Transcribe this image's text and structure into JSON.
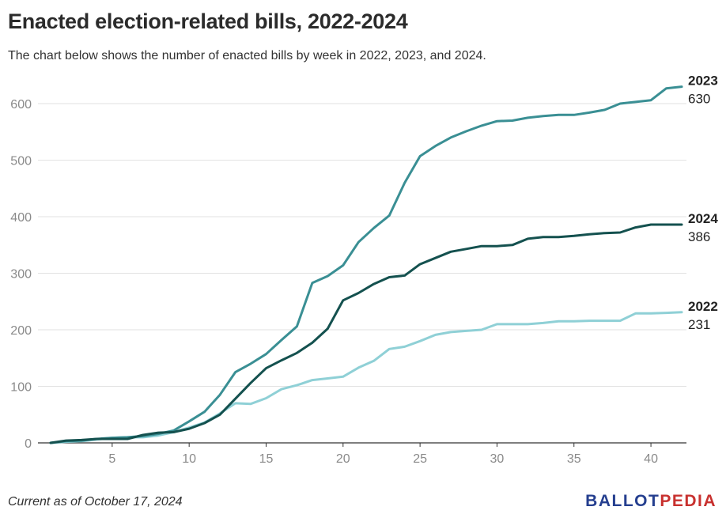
{
  "header": {
    "title": "Enacted election-related bills, 2022-2024",
    "subtitle": "The chart below shows the number of enacted bills by week in 2022, 2023, and 2024."
  },
  "footer": {
    "note": "Current as of October 17, 2024",
    "logo_ballot": "BALLOT",
    "logo_pedia": "PEDIA"
  },
  "colors": {
    "2022": "#8fd0d6",
    "2023": "#3a8f94",
    "2024": "#14514f",
    "brand_blue": "#253f8f",
    "brand_red": "#c8312f"
  },
  "chart_data": {
    "type": "line",
    "title": "Enacted election-related bills, 2022-2024",
    "xlabel": "",
    "ylabel": "",
    "xlim": [
      1,
      42
    ],
    "ylim": [
      0,
      630
    ],
    "x_ticks": [
      5,
      10,
      15,
      20,
      25,
      30,
      35,
      40
    ],
    "y_ticks": [
      0,
      100,
      200,
      300,
      400,
      500,
      600
    ],
    "grid": true,
    "legend": "end-labels",
    "x": [
      1,
      2,
      3,
      4,
      5,
      6,
      7,
      8,
      9,
      10,
      11,
      12,
      13,
      14,
      15,
      16,
      17,
      18,
      19,
      20,
      21,
      22,
      23,
      24,
      25,
      26,
      27,
      28,
      29,
      30,
      31,
      32,
      33,
      34,
      35,
      36,
      37,
      38,
      39,
      40,
      41,
      42
    ],
    "series": [
      {
        "name": "2023",
        "end_value": "630",
        "values": [
          0,
          3,
          4,
          7,
          9,
          10,
          12,
          16,
          22,
          38,
          55,
          85,
          125,
          140,
          157,
          182,
          206,
          283,
          295,
          314,
          355,
          380,
          402,
          460,
          507,
          525,
          540,
          551,
          561,
          569,
          570,
          575,
          578,
          580,
          580,
          584,
          589,
          600,
          603,
          606,
          627,
          630
        ]
      },
      {
        "name": "2024",
        "end_value": "386",
        "values": [
          0,
          4,
          5,
          7,
          7,
          7,
          14,
          18,
          19,
          25,
          35,
          50,
          78,
          106,
          132,
          146,
          159,
          177,
          202,
          252,
          265,
          281,
          293,
          296,
          316,
          327,
          338,
          343,
          348,
          348,
          350,
          361,
          364,
          364,
          366,
          369,
          371,
          372,
          381,
          386,
          386,
          386
        ]
      },
      {
        "name": "2022",
        "end_value": "231",
        "values": [
          0,
          2,
          3,
          6,
          9,
          10,
          10,
          13,
          19,
          27,
          36,
          52,
          70,
          69,
          79,
          95,
          102,
          111,
          114,
          117,
          133,
          145,
          166,
          170,
          180,
          191,
          196,
          198,
          200,
          210,
          210,
          210,
          212,
          215,
          215,
          216,
          216,
          216,
          229,
          229,
          230,
          231
        ]
      }
    ]
  }
}
